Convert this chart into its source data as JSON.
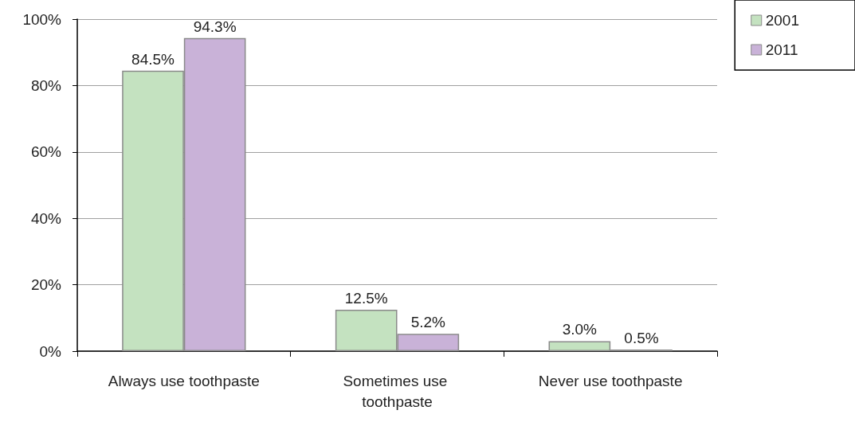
{
  "chart_data": {
    "type": "bar",
    "categories": [
      "Always use toothpaste",
      "Sometimes use toothpaste",
      "Never use toothpaste"
    ],
    "series": [
      {
        "name": "2001",
        "color": "#c4e2c0",
        "values": [
          84.5,
          12.5,
          3.0
        ],
        "value_labels": [
          "84.5%",
          "12.5%",
          "3.0%"
        ]
      },
      {
        "name": "2011",
        "color": "#c9b2d8",
        "values": [
          94.3,
          5.2,
          0.5
        ],
        "value_labels": [
          "94.3%",
          "5.2%",
          "0.5%"
        ]
      }
    ],
    "ylim": [
      0,
      100
    ],
    "yticks": [
      {
        "value": 0,
        "label": "0%"
      },
      {
        "value": 20,
        "label": "20%"
      },
      {
        "value": 40,
        "label": "40%"
      },
      {
        "value": 60,
        "label": "60%"
      },
      {
        "value": 80,
        "label": "80%"
      },
      {
        "value": 100,
        "label": "100%"
      }
    ],
    "grid": "y",
    "legend": "top right"
  }
}
